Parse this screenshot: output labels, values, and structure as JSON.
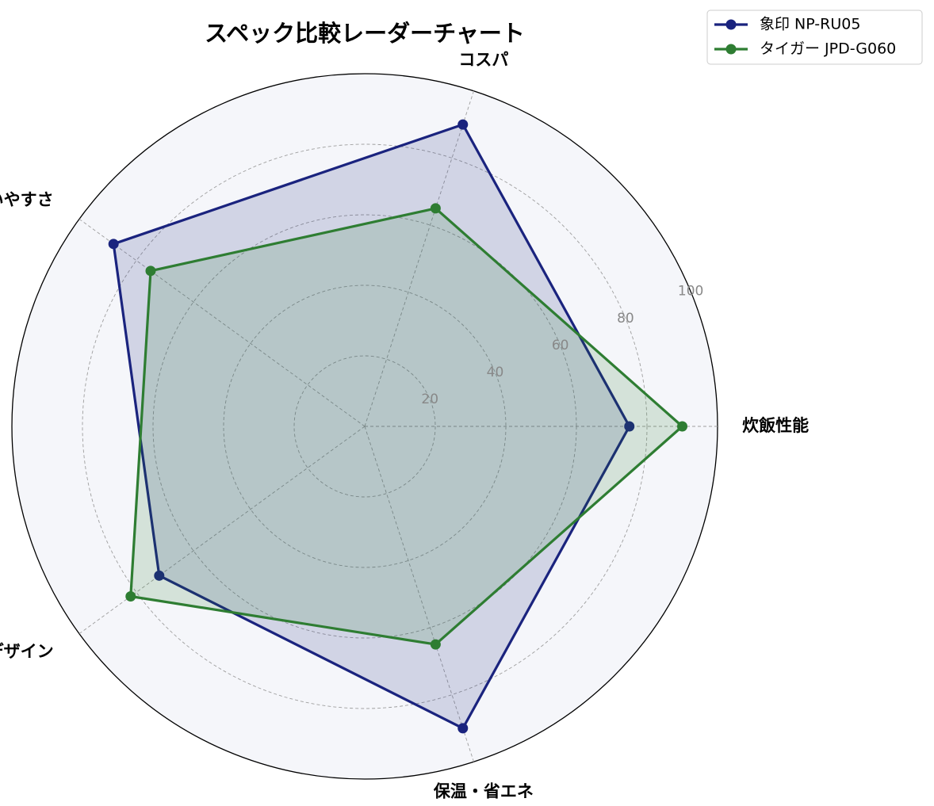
{
  "chart_data": {
    "type": "radar",
    "title": "スペック比較レーダーチャート",
    "categories": [
      "炊飯性能",
      "コスパ",
      "使いやすさ",
      "デザイン",
      "保温・省エネ"
    ],
    "rmax": 100,
    "ticks": [
      20,
      40,
      60,
      80,
      100
    ],
    "tick_labels": [
      "20",
      "40",
      "60",
      "80",
      "100"
    ],
    "grid": true,
    "legend_position": "top-right",
    "series": [
      {
        "name": "象印 NP-RU05",
        "color": "#1a237e",
        "fill": "rgba(26,35,126,0.16)",
        "values": [
          75,
          90,
          88,
          72,
          90
        ]
      },
      {
        "name": "タイガー JPD-G060",
        "color": "#2e7d32",
        "fill": "rgba(46,125,50,0.16)",
        "values": [
          90,
          65,
          75,
          82,
          65
        ]
      }
    ]
  }
}
